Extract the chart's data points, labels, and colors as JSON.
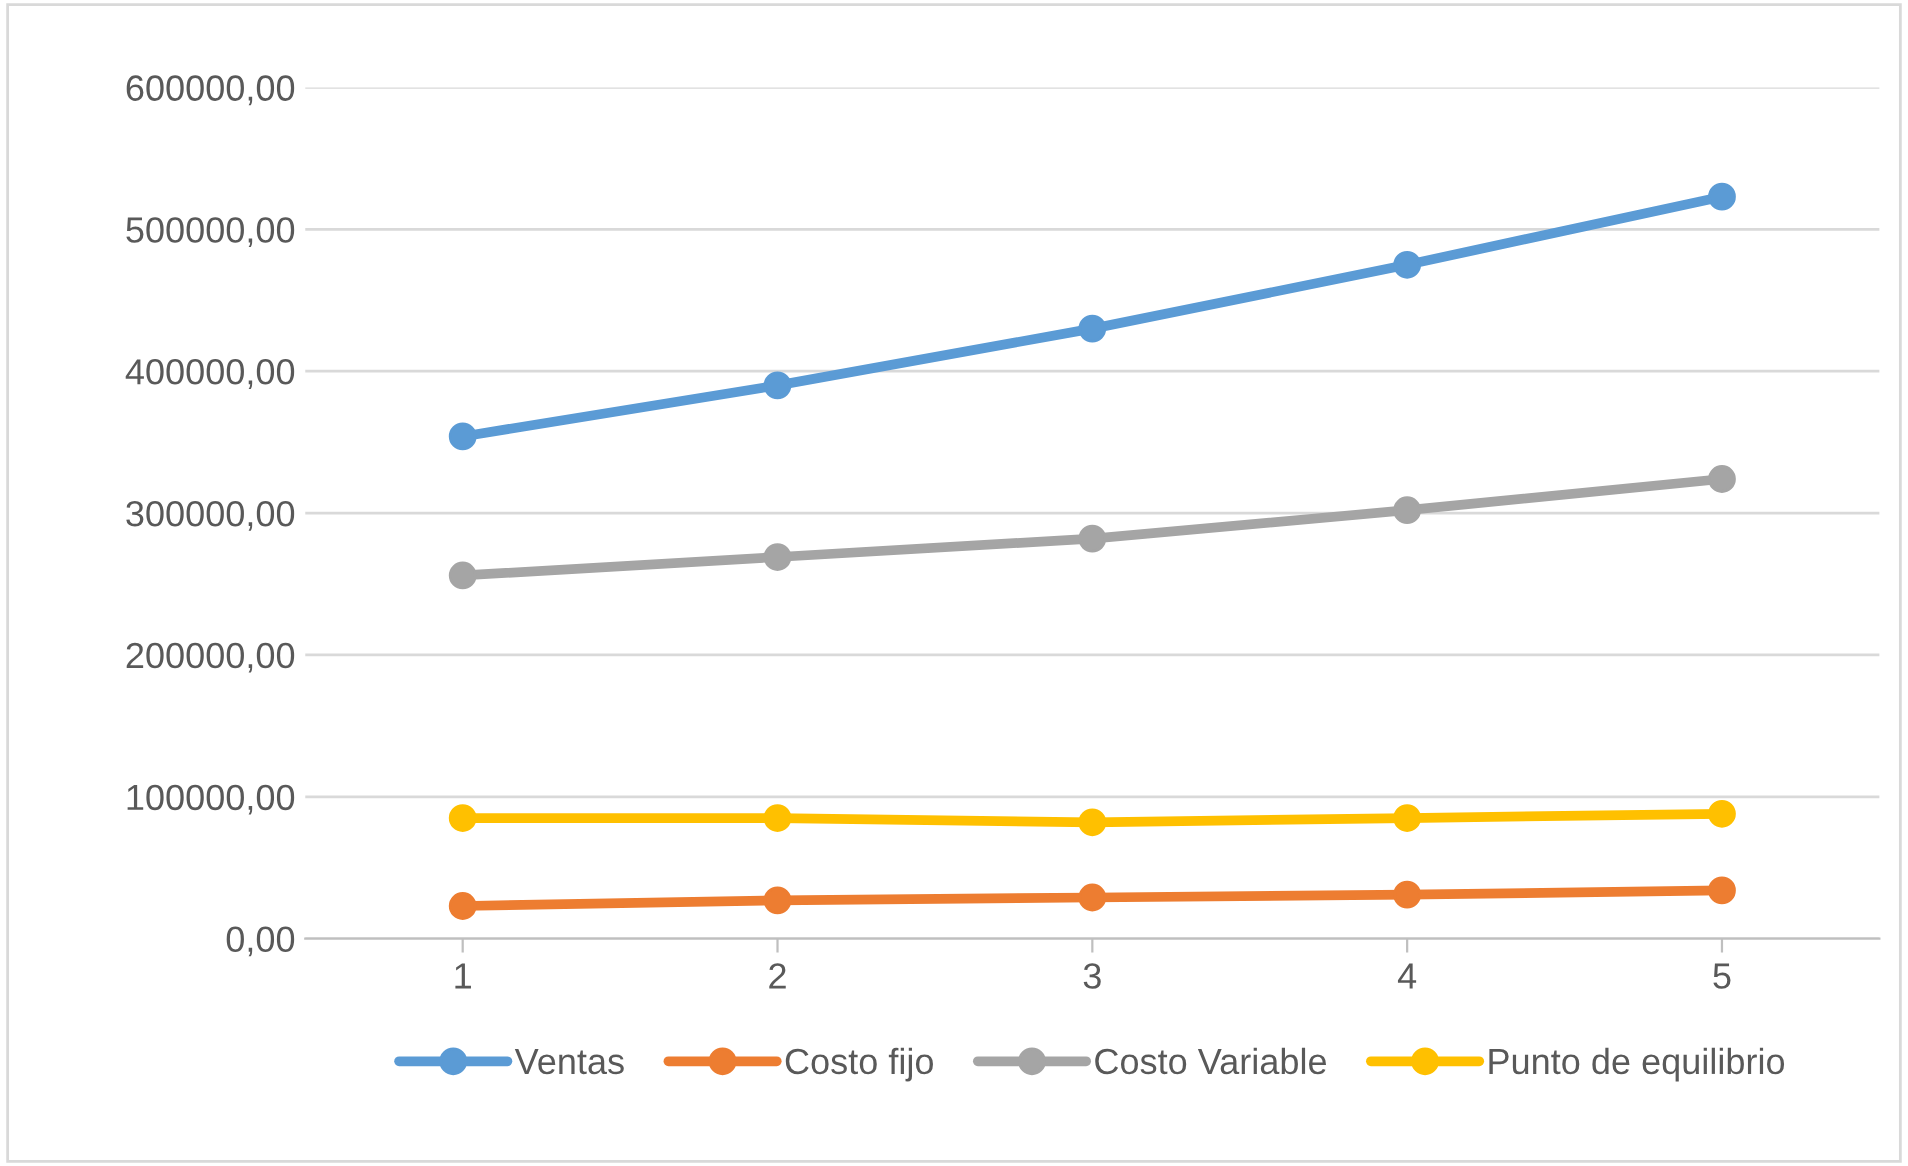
{
  "chart_data": {
    "type": "line",
    "categories": [
      "1",
      "2",
      "3",
      "4",
      "5"
    ],
    "series": [
      {
        "name": "Ventas",
        "color": "#5b9bd5",
        "values": [
          354000,
          390000,
          430000,
          475000,
          523000
        ]
      },
      {
        "name": "Costo fijo",
        "color": "#ed7d31",
        "values": [
          23000,
          27000,
          29000,
          31000,
          34000
        ]
      },
      {
        "name": "Costo Variable",
        "color": "#a5a5a5",
        "values": [
          256000,
          269000,
          282000,
          302000,
          324000
        ]
      },
      {
        "name": "Punto de equilibrio",
        "color": "#ffc000",
        "values": [
          85000,
          85000,
          82000,
          85000,
          88000
        ]
      }
    ],
    "ylim": [
      0,
      600000
    ],
    "yticks": [
      {
        "value": 0,
        "label": "0,00"
      },
      {
        "value": 100000,
        "label": "100000,00"
      },
      {
        "value": 200000,
        "label": "200000,00"
      },
      {
        "value": 300000,
        "label": "300000,00"
      },
      {
        "value": 400000,
        "label": "400000,00"
      },
      {
        "value": 500000,
        "label": "500000,00"
      },
      {
        "value": 600000,
        "label": "600000,00"
      }
    ],
    "grid": "y",
    "legend": "bottom",
    "marker": "circle",
    "line_style": "solid"
  }
}
